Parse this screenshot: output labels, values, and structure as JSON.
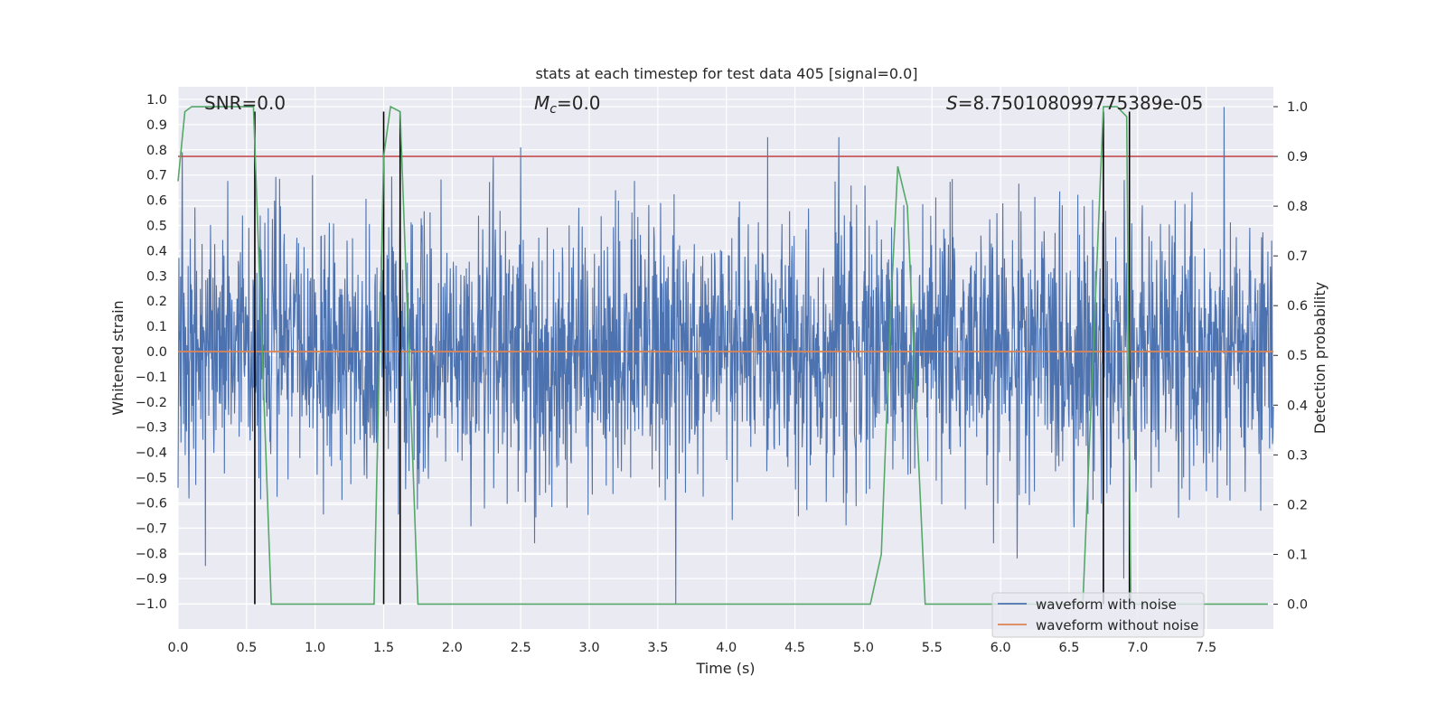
{
  "chart_data": {
    "type": "line",
    "title": "stats at each timestep for test data 405 [signal=0.0]",
    "xlabel": "Time (s)",
    "ylabel": "Whitened strain",
    "ylabel_right": "Detection probability",
    "xlim": [
      0.0,
      7.99
    ],
    "ylim": [
      -1.1,
      1.05
    ],
    "ylim_right": [
      -0.05,
      1.04
    ],
    "x_ticks": [
      "0.0",
      "0.5",
      "1.0",
      "1.5",
      "2.0",
      "2.5",
      "3.0",
      "3.5",
      "4.0",
      "4.5",
      "5.0",
      "5.5",
      "6.0",
      "6.5",
      "7.0",
      "7.5"
    ],
    "x_tick_values": [
      0.0,
      0.5,
      1.0,
      1.5,
      2.0,
      2.5,
      3.0,
      3.5,
      4.0,
      4.5,
      5.0,
      5.5,
      6.0,
      6.5,
      7.0,
      7.5
    ],
    "y_ticks": [
      "−1.0",
      "−0.9",
      "−0.8",
      "−0.7",
      "−0.6",
      "−0.5",
      "−0.4",
      "−0.3",
      "−0.2",
      "−0.1",
      "0.0",
      "0.1",
      "0.2",
      "0.3",
      "0.4",
      "0.5",
      "0.6",
      "0.7",
      "0.8",
      "0.9",
      "1.0"
    ],
    "y_tick_values": [
      -1.0,
      -0.9,
      -0.8,
      -0.7,
      -0.6,
      -0.5,
      -0.4,
      -0.3,
      -0.2,
      -0.1,
      0.0,
      0.1,
      0.2,
      0.3,
      0.4,
      0.5,
      0.6,
      0.7,
      0.8,
      0.9,
      1.0
    ],
    "y_ticks_right": [
      "0.0",
      "0.1",
      "0.2",
      "0.3",
      "0.4",
      "0.5",
      "0.6",
      "0.7",
      "0.8",
      "0.9",
      "1.0"
    ],
    "y_tick_values_right": [
      0.0,
      0.1,
      0.2,
      0.3,
      0.4,
      0.5,
      0.6,
      0.7,
      0.8,
      0.9,
      1.0
    ],
    "annotations": {
      "snr": "SNR=0.0",
      "mc_symbol": "M",
      "mc_sub": "c",
      "mc_value": "=0.0",
      "s_symbol": "S",
      "s_value": "=8.750108099775389e-05"
    },
    "series": [
      {
        "name": "waveform with noise",
        "color": "#4c72b0",
        "kind": "noise",
        "spikes": [
          {
            "x": 0.03,
            "y": 0.79
          },
          {
            "x": 0.2,
            "y": -0.85
          },
          {
            "x": 1.62,
            "y": 0.73
          },
          {
            "x": 2.3,
            "y": 0.77
          },
          {
            "x": 2.5,
            "y": 0.81
          },
          {
            "x": 2.6,
            "y": -0.76
          },
          {
            "x": 3.63,
            "y": -1.0
          },
          {
            "x": 4.3,
            "y": 0.85
          },
          {
            "x": 4.82,
            "y": 0.85
          },
          {
            "x": 5.95,
            "y": -0.76
          },
          {
            "x": 6.12,
            "y": -0.82
          },
          {
            "x": 6.9,
            "y": -0.9
          },
          {
            "x": 7.63,
            "y": 0.97
          },
          {
            "x": 7.58,
            "y": -0.58
          }
        ]
      },
      {
        "name": "waveform without noise",
        "color": "#dd8452",
        "x": [
          0.0,
          7.99
        ],
        "y": [
          0.0,
          0.0
        ]
      },
      {
        "name": "detection probability",
        "color": "#55a868",
        "axis": "right",
        "x": [
          0.0,
          0.05,
          0.1,
          0.3,
          0.55,
          0.68,
          1.3,
          1.43,
          1.5,
          1.55,
          1.62,
          1.75,
          5.0,
          5.05,
          5.13,
          5.2,
          5.25,
          5.32,
          5.4,
          5.45,
          5.5,
          6.6,
          6.75,
          6.85,
          6.92,
          6.95,
          7.95
        ],
        "y": [
          0.85,
          0.99,
          1.0,
          1.0,
          1.0,
          0.0,
          0.0,
          0.0,
          0.9,
          1.0,
          0.99,
          0.0,
          0.0,
          0.0,
          0.1,
          0.6,
          0.88,
          0.8,
          0.3,
          0.0,
          0.0,
          0.0,
          1.0,
          1.0,
          0.98,
          0.0,
          0.0
        ]
      }
    ],
    "threshold": {
      "value": 0.9,
      "axis": "right",
      "color": "#c44e52"
    },
    "vlines": [
      0.56,
      1.5,
      1.62,
      6.75,
      6.94
    ],
    "vline_color": "#000000",
    "vline_range_right": [
      0.0,
      0.99
    ],
    "legend": {
      "placement": "lower right",
      "entries": [
        {
          "label": "waveform with noise",
          "color": "#4c72b0"
        },
        {
          "label": "waveform without noise",
          "color": "#dd8452"
        }
      ]
    },
    "grid": true,
    "background": "#eaeaf2"
  }
}
